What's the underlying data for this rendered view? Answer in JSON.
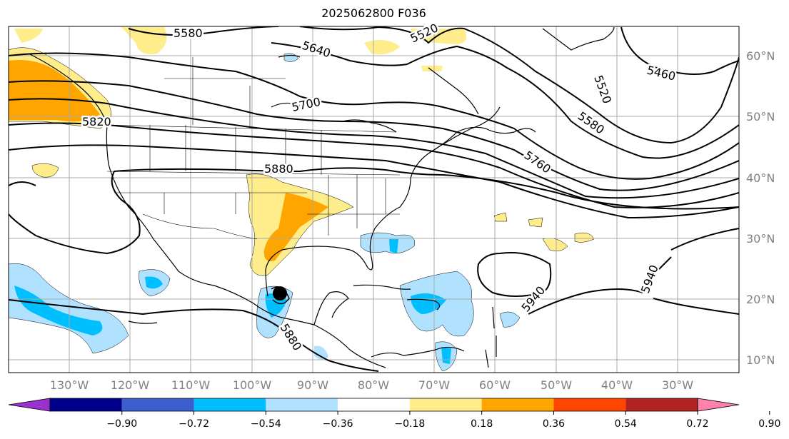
{
  "title": "2025062800 F036",
  "lon_labels": [
    "130°W",
    "120°W",
    "110°W",
    "100°W",
    "90°W",
    "80°W",
    "70°W",
    "60°W",
    "50°W",
    "40°W",
    "30°W"
  ],
  "lat_labels": [
    "60°N",
    "50°N",
    "40°N",
    "30°N",
    "20°N",
    "10°N"
  ],
  "contour_labels": [
    "5580",
    "5520",
    "5640",
    "5460",
    "5520",
    "5700",
    "5580",
    "5820",
    "5760",
    "5880",
    "5940",
    "5940",
    "5880"
  ],
  "colorbar": {
    "ticks": [
      "−0.90",
      "−0.72",
      "−0.54",
      "−0.36",
      "−0.18",
      "0.18",
      "0.36",
      "0.54",
      "0.72",
      "0.90"
    ],
    "colors": [
      "#9932cc",
      "#00008b",
      "#3a5fcd",
      "#00bfff",
      "#b0e2ff",
      "#ffffff",
      "#ffec8b",
      "#ffa500",
      "#ff4500",
      "#b22222",
      "#ff82ab"
    ]
  },
  "marker": "storm-center"
}
